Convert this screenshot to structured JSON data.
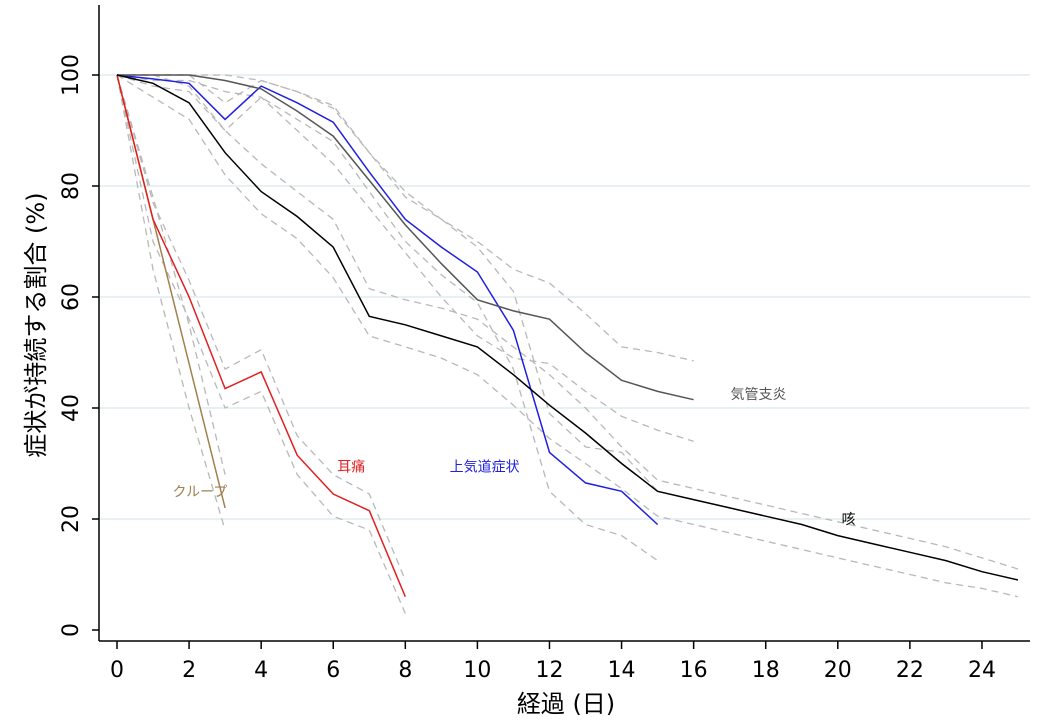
{
  "chart_data": {
    "type": "line",
    "title": "",
    "xlabel": "経過 (日)",
    "ylabel": "症状が持続する割合 (%)",
    "xlim": [
      -0.5,
      25.5
    ],
    "ylim": [
      -3,
      113
    ],
    "x_ticks": [
      0,
      2,
      4,
      6,
      8,
      10,
      12,
      14,
      16,
      18,
      20,
      22,
      24
    ],
    "y_ticks": [
      0,
      20,
      40,
      60,
      80,
      100
    ],
    "grid": "horizontal",
    "legend": "none",
    "series": [
      {
        "name": "クループ",
        "color": "#a08050",
        "label_anchor": [
          2.3,
          25
        ],
        "points": [
          [
            0,
            100
          ],
          [
            1,
            74
          ],
          [
            2,
            48
          ],
          [
            3,
            22
          ]
        ],
        "ci_upper": [
          [
            0,
            100
          ],
          [
            1,
            78
          ],
          [
            2,
            55
          ],
          [
            3,
            28
          ]
        ],
        "ci_lower": [
          [
            0,
            100
          ],
          [
            1,
            65
          ],
          [
            2,
            40
          ],
          [
            3,
            18
          ]
        ]
      },
      {
        "name": "耳痛",
        "color": "#e02020",
        "label_anchor": [
          6.5,
          29.5
        ],
        "points": [
          [
            0,
            100
          ],
          [
            1,
            74
          ],
          [
            2,
            60
          ],
          [
            3,
            43.5
          ],
          [
            4,
            46.5
          ],
          [
            5,
            31.5
          ],
          [
            6,
            24.5
          ],
          [
            7,
            21.5
          ],
          [
            8,
            6
          ]
        ],
        "ci_upper": [
          [
            0,
            100
          ],
          [
            1,
            77
          ],
          [
            2,
            63
          ],
          [
            3,
            47
          ],
          [
            4,
            50.5
          ],
          [
            5,
            35
          ],
          [
            6,
            28
          ],
          [
            7,
            24.5
          ],
          [
            8,
            9
          ]
        ],
        "ci_lower": [
          [
            0,
            100
          ],
          [
            1,
            70
          ],
          [
            2,
            56
          ],
          [
            3,
            40
          ],
          [
            4,
            43
          ],
          [
            5,
            28
          ],
          [
            6,
            20.5
          ],
          [
            7,
            18
          ],
          [
            8,
            3
          ]
        ]
      },
      {
        "name": "上気道症状",
        "color": "#2020e0",
        "label_anchor": [
          10.2,
          29.5
        ],
        "points": [
          [
            0,
            100
          ],
          [
            1,
            99.3
          ],
          [
            2,
            98.5
          ],
          [
            3,
            92
          ],
          [
            4,
            98
          ],
          [
            5,
            95
          ],
          [
            6,
            91.5
          ],
          [
            7,
            82.5
          ],
          [
            8,
            74
          ],
          [
            9,
            69
          ],
          [
            10,
            64.5
          ],
          [
            11,
            54
          ],
          [
            12,
            32
          ],
          [
            13,
            26.5
          ],
          [
            14,
            25
          ],
          [
            15,
            19
          ]
        ],
        "ci_upper": [
          [
            0,
            100
          ],
          [
            1,
            100
          ],
          [
            2,
            100
          ],
          [
            3,
            95
          ],
          [
            4,
            99
          ],
          [
            5,
            97
          ],
          [
            6,
            94.5
          ],
          [
            7,
            86
          ],
          [
            8,
            78
          ],
          [
            9,
            74
          ],
          [
            10,
            69
          ],
          [
            11,
            61
          ],
          [
            12,
            39
          ],
          [
            13,
            33
          ],
          [
            14,
            32
          ],
          [
            15,
            25
          ]
        ],
        "ci_lower": [
          [
            0,
            100
          ],
          [
            1,
            98
          ],
          [
            2,
            97
          ],
          [
            3,
            90
          ],
          [
            4,
            96
          ],
          [
            5,
            92
          ],
          [
            6,
            88
          ],
          [
            7,
            79
          ],
          [
            8,
            70
          ],
          [
            9,
            64
          ],
          [
            10,
            59
          ],
          [
            11,
            47
          ],
          [
            12,
            25
          ],
          [
            13,
            19
          ],
          [
            14,
            17
          ],
          [
            15,
            12.5
          ]
        ]
      },
      {
        "name": "気管支炎",
        "color": "#555555",
        "label_anchor": [
          17.8,
          42.5
        ],
        "points": [
          [
            0,
            100
          ],
          [
            1,
            100
          ],
          [
            2,
            100
          ],
          [
            3,
            99
          ],
          [
            4,
            97.5
          ],
          [
            5,
            93.5
          ],
          [
            6,
            89
          ],
          [
            7,
            81
          ],
          [
            8,
            73
          ],
          [
            9,
            66
          ],
          [
            10,
            59.5
          ],
          [
            11,
            57.5
          ],
          [
            12,
            56
          ],
          [
            13,
            50
          ],
          [
            14,
            45
          ],
          [
            15,
            43
          ],
          [
            16,
            41.5
          ]
        ],
        "ci_upper": [
          [
            0,
            100
          ],
          [
            1,
            100
          ],
          [
            2,
            100
          ],
          [
            3,
            100
          ],
          [
            4,
            99
          ],
          [
            5,
            97
          ],
          [
            6,
            94
          ],
          [
            7,
            86
          ],
          [
            8,
            79
          ],
          [
            9,
            74
          ],
          [
            10,
            70
          ],
          [
            11,
            65
          ],
          [
            12,
            62.5
          ],
          [
            13,
            57
          ],
          [
            14,
            51
          ],
          [
            15,
            50
          ],
          [
            16,
            48.5
          ]
        ],
        "ci_lower": [
          [
            0,
            100
          ],
          [
            1,
            99
          ],
          [
            2,
            99
          ],
          [
            3,
            97
          ],
          [
            4,
            96
          ],
          [
            5,
            90
          ],
          [
            6,
            84
          ],
          [
            7,
            76
          ],
          [
            8,
            68
          ],
          [
            9,
            60
          ],
          [
            10,
            53
          ],
          [
            11,
            49
          ],
          [
            12,
            48
          ],
          [
            13,
            43
          ],
          [
            14,
            38.5
          ],
          [
            15,
            36
          ],
          [
            16,
            34
          ]
        ]
      },
      {
        "name": "咳",
        "color": "#000000",
        "label_anchor": [
          20.3,
          20
        ],
        "points": [
          [
            0,
            100
          ],
          [
            1,
            98.5
          ],
          [
            2,
            95
          ],
          [
            3,
            86
          ],
          [
            4,
            79
          ],
          [
            5,
            74.5
          ],
          [
            6,
            69
          ],
          [
            7,
            56.5
          ],
          [
            8,
            55
          ],
          [
            9,
            53
          ],
          [
            10,
            51
          ],
          [
            11,
            46
          ],
          [
            12,
            40.5
          ],
          [
            13,
            35.5
          ],
          [
            14,
            30
          ],
          [
            15,
            25
          ],
          [
            16,
            23.5
          ],
          [
            17,
            22
          ],
          [
            18,
            20.5
          ],
          [
            19,
            19
          ],
          [
            20,
            17
          ],
          [
            21,
            15.5
          ],
          [
            22,
            14
          ],
          [
            23,
            12.5
          ],
          [
            24,
            10.5
          ],
          [
            25,
            9
          ]
        ],
        "ci_upper": [
          [
            0,
            100
          ],
          [
            1,
            100
          ],
          [
            2,
            98
          ],
          [
            3,
            90
          ],
          [
            4,
            84
          ],
          [
            5,
            79
          ],
          [
            6,
            74
          ],
          [
            7,
            61.5
          ],
          [
            8,
            59.5
          ],
          [
            9,
            58
          ],
          [
            10,
            56
          ],
          [
            11,
            51
          ],
          [
            12,
            46
          ],
          [
            13,
            40
          ],
          [
            14,
            33
          ],
          [
            15,
            27
          ],
          [
            16,
            25.5
          ],
          [
            17,
            24
          ],
          [
            18,
            22.5
          ],
          [
            19,
            21
          ],
          [
            20,
            19.5
          ],
          [
            21,
            18
          ],
          [
            22,
            16.5
          ],
          [
            23,
            15
          ],
          [
            24,
            13
          ],
          [
            25,
            11
          ]
        ],
        "ci_lower": [
          [
            0,
            100
          ],
          [
            1,
            96
          ],
          [
            2,
            92
          ],
          [
            3,
            82
          ],
          [
            4,
            75
          ],
          [
            5,
            70.5
          ],
          [
            6,
            63.5
          ],
          [
            7,
            53
          ],
          [
            8,
            51
          ],
          [
            9,
            49
          ],
          [
            10,
            46
          ],
          [
            11,
            40.5
          ],
          [
            12,
            34.5
          ],
          [
            13,
            30
          ],
          [
            14,
            25.5
          ],
          [
            15,
            20.5
          ],
          [
            16,
            19
          ],
          [
            17,
            17.5
          ],
          [
            18,
            16
          ],
          [
            19,
            14.5
          ],
          [
            20,
            13
          ],
          [
            21,
            11.5
          ],
          [
            22,
            10
          ],
          [
            23,
            8.5
          ],
          [
            24,
            7.5
          ],
          [
            25,
            6
          ]
        ]
      }
    ]
  }
}
